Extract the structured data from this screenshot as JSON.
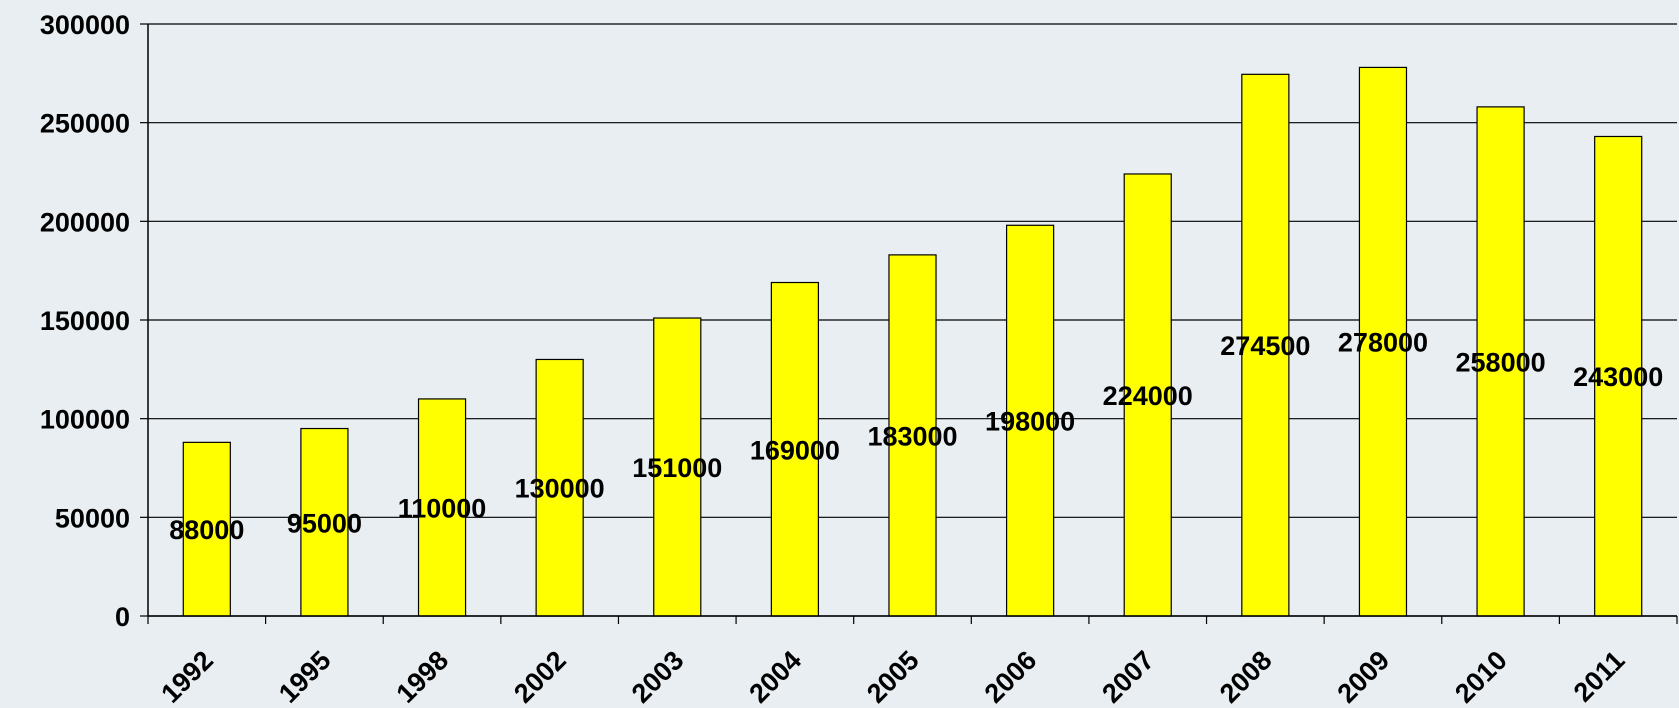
{
  "chart_data": {
    "type": "bar",
    "title": "",
    "xlabel": "",
    "ylabel": "",
    "categories": [
      "1992",
      "1995",
      "1998",
      "2002",
      "2003",
      "2004",
      "2005",
      "2006",
      "2007",
      "2008",
      "2009",
      "2010",
      "2011"
    ],
    "values": [
      88000,
      95000,
      110000,
      130000,
      151000,
      169000,
      183000,
      198000,
      224000,
      274500,
      278000,
      258000,
      243000
    ],
    "value_labels": [
      "88000",
      "95000",
      "110000",
      "130000",
      "151000",
      "169000",
      "183000",
      "198000",
      "224000",
      "274500",
      "278000",
      "258000",
      "243000"
    ],
    "ylim": [
      0,
      300000
    ],
    "yticks": [
      "0",
      "50000",
      "100000",
      "150000",
      "200000",
      "250000",
      "300000"
    ],
    "grid": true,
    "legend": "none",
    "bar_color": "#ffff00",
    "background_color": "#e8eef2"
  }
}
